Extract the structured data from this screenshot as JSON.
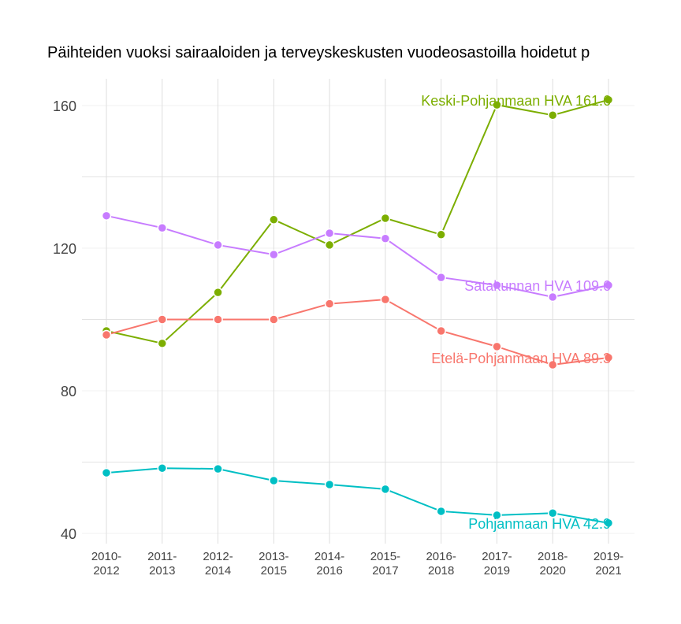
{
  "chart_data": {
    "type": "line",
    "title": "Päihteiden vuoksi sairaaloiden ja terveyskeskusten vuodeosastoilla hoidetut p",
    "xlabel": "",
    "ylabel": "",
    "categories": [
      [
        "2010-",
        "2012"
      ],
      [
        "2011-",
        "2013"
      ],
      [
        "2012-",
        "2014"
      ],
      [
        "2013-",
        "2015"
      ],
      [
        "2014-",
        "2016"
      ],
      [
        "2015-",
        "2017"
      ],
      [
        "2016-",
        "2018"
      ],
      [
        "2017-",
        "2019"
      ],
      [
        "2018-",
        "2020"
      ],
      [
        "2019-",
        "2021"
      ]
    ],
    "yticks": [
      40,
      80,
      120,
      160
    ],
    "ylim": [
      37,
      174
    ],
    "grid": true,
    "legend": "none (direct labels at last point)",
    "series": [
      {
        "name": "Keski-Pohjanmaan HVA",
        "end_label": "Keski-Pohjanmaan HVA 161.6",
        "color": "#7cae00",
        "values": [
          96.8,
          93.3,
          107.6,
          128.0,
          120.9,
          128.4,
          123.8,
          160.2,
          157.3,
          161.6
        ]
      },
      {
        "name": "Satakunnan HVA",
        "end_label": "Satakunnan HVA 109.6",
        "color": "#c77cff",
        "values": [
          129.1,
          125.7,
          120.9,
          118.2,
          124.2,
          122.7,
          111.8,
          109.6,
          106.3,
          109.6
        ]
      },
      {
        "name": "Etelä-Pohjanmaan HVA",
        "end_label": "Etelä-Pohjanmaan HVA 89.3",
        "color": "#f8766d",
        "values": [
          95.7,
          100.0,
          100.0,
          100.0,
          104.4,
          105.6,
          96.8,
          92.4,
          87.3,
          89.3
        ]
      },
      {
        "name": "Pohjanmaan HVA",
        "end_label": "Pohjanmaan HVA 42.9",
        "color": "#00bfc4",
        "values": [
          57.0,
          58.3,
          58.1,
          54.8,
          53.7,
          52.4,
          46.2,
          45.1,
          45.7,
          42.9
        ]
      }
    ]
  }
}
